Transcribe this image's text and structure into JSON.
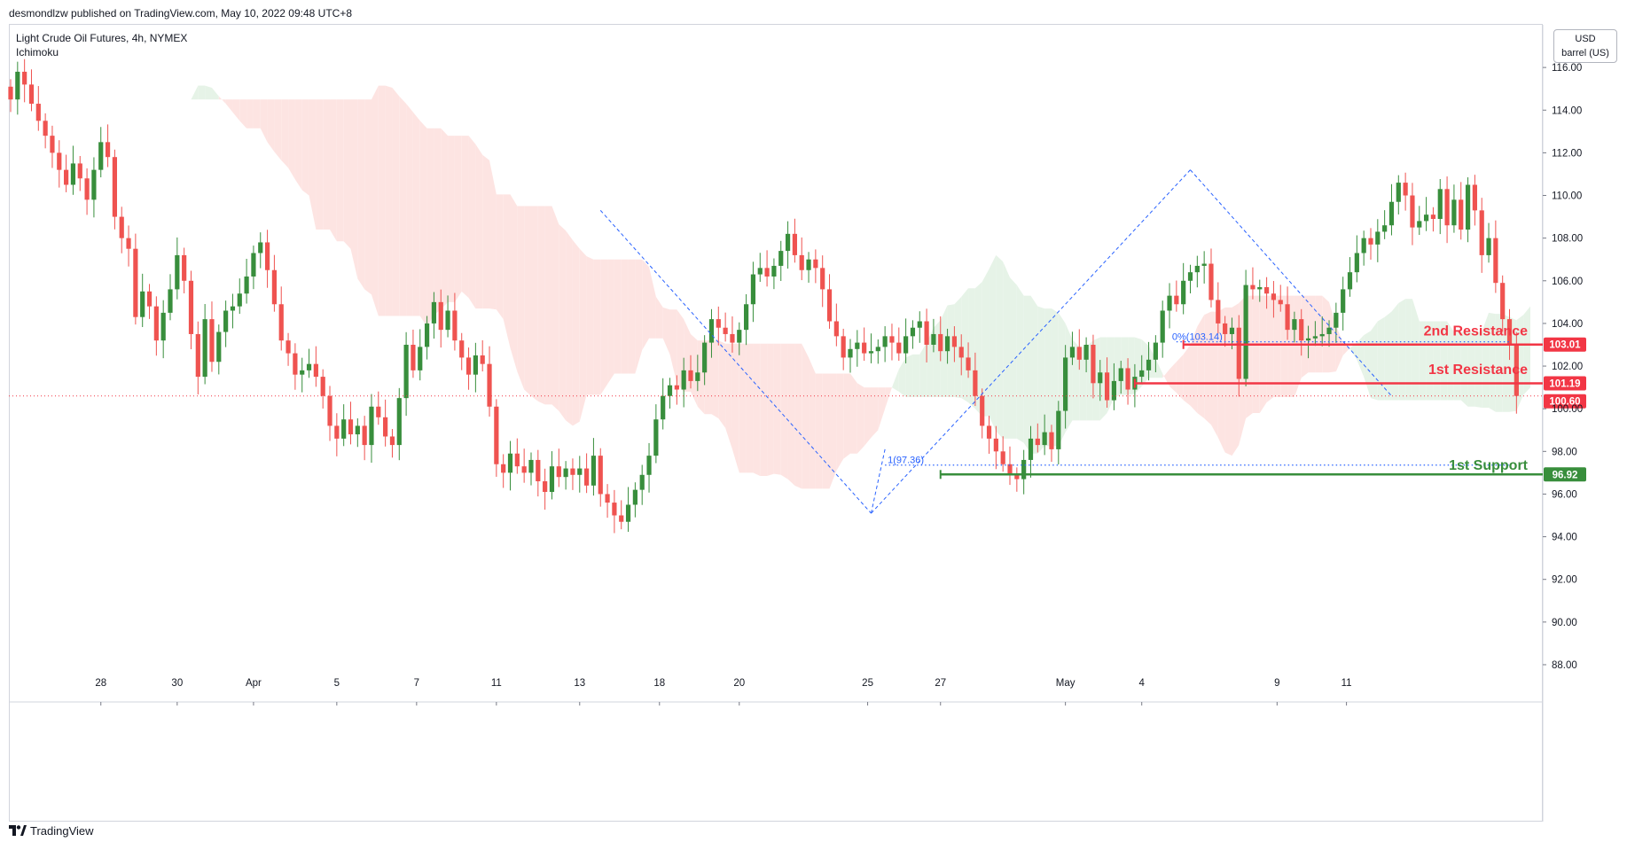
{
  "header": {
    "published": "desmondlzw published on TradingView.com, May 10, 2022 09:48 UTC+8"
  },
  "legend": {
    "symbol": "Light Crude Oil Futures, 4h, NYMEX",
    "indicator": "Ichimoku"
  },
  "unit_box": {
    "currency": "USD",
    "unit": "barrel (US)"
  },
  "footer": {
    "brand": "TradingView",
    "logo_icon": "tradingview-logo-icon"
  },
  "colors": {
    "up": "#388e3c",
    "down": "#ef5350",
    "cloud_bull": "#e6f3e7",
    "cloud_bear": "#fde4e2",
    "resistance": "#f23645",
    "support": "#388e3c",
    "fib": "#2962ff",
    "last_price": "#f23645"
  },
  "chart_data": {
    "type": "candlestick",
    "title": "Light Crude Oil Futures, 4h, NYMEX",
    "indicator": "Ichimoku",
    "ylim": [
      87.5,
      118
    ],
    "yticks": [
      "116.00",
      "114.00",
      "112.00",
      "110.00",
      "108.00",
      "106.00",
      "104.00",
      "102.00",
      "100.00",
      "98.00",
      "96.00",
      "94.00",
      "92.00",
      "90.00",
      "88.00"
    ],
    "xlim": [
      0,
      219
    ],
    "xticks": [
      {
        "label": "28",
        "x": 13
      },
      {
        "label": "30",
        "x": 24
      },
      {
        "label": "Apr",
        "x": 35
      },
      {
        "label": "5",
        "x": 47
      },
      {
        "label": "7",
        "x": 58.5
      },
      {
        "label": "11",
        "x": 70
      },
      {
        "label": "13",
        "x": 82
      },
      {
        "label": "18",
        "x": 93.5
      },
      {
        "label": "20",
        "x": 105
      },
      {
        "label": "25",
        "x": 123.5
      },
      {
        "label": "27",
        "x": 134
      },
      {
        "label": "May",
        "x": 152
      },
      {
        "label": "4",
        "x": 163
      },
      {
        "label": "9",
        "x": 182.5
      },
      {
        "label": "11",
        "x": 192.5
      }
    ],
    "closes": [
      114.5,
      115.8,
      115.2,
      114.3,
      113.5,
      112.8,
      112.0,
      111.2,
      110.5,
      111.5,
      110.8,
      109.8,
      111.2,
      112.5,
      111.8,
      109.0,
      108.0,
      107.5,
      104.3,
      105.5,
      104.8,
      103.2,
      104.5,
      105.6,
      107.2,
      106.0,
      103.5,
      101.5,
      104.2,
      102.2,
      103.6,
      104.6,
      104.8,
      105.4,
      106.2,
      107.3,
      107.8,
      106.5,
      104.9,
      103.2,
      102.6,
      101.6,
      101.8,
      102.1,
      101.5,
      100.6,
      99.2,
      98.6,
      99.5,
      98.8,
      99.2,
      98.3,
      100.1,
      99.6,
      98.7,
      98.3,
      100.5,
      103.0,
      101.8,
      102.9,
      104.0,
      105.0,
      103.7,
      104.6,
      103.2,
      102.4,
      101.6,
      102.5,
      102.1,
      100.1,
      97.4,
      97.0,
      97.9,
      97.3,
      97.0,
      97.6,
      96.6,
      96.1,
      97.3,
      96.8,
      97.2,
      96.9,
      97.2,
      96.4,
      97.8,
      96.0,
      95.6,
      95.0,
      94.7,
      95.5,
      96.2,
      96.9,
      97.8,
      99.5,
      100.6,
      101.1,
      100.9,
      101.8,
      101.3,
      101.7,
      103.1,
      104.2,
      103.8,
      103.5,
      103.1,
      103.7,
      104.9,
      106.3,
      106.6,
      106.2,
      106.7,
      107.4,
      108.2,
      107.2,
      106.5,
      107.0,
      106.6,
      105.6,
      104.1,
      103.4,
      102.4,
      102.8,
      103.1,
      102.6,
      102.7,
      102.9,
      103.4,
      103.1,
      102.6,
      103.4,
      103.8,
      104.1,
      103.0,
      103.5,
      102.7,
      103.4,
      102.9,
      102.4,
      101.8,
      100.6,
      99.2,
      98.6,
      98.0,
      97.4,
      96.9,
      96.7,
      97.6,
      98.6,
      98.3,
      98.9,
      98.1,
      99.9,
      102.4,
      102.9,
      102.3,
      103.0,
      101.2,
      101.7,
      100.4,
      101.3,
      101.9,
      100.9,
      101.5,
      101.8,
      102.3,
      103.1,
      104.6,
      105.3,
      104.9,
      106.0,
      106.4,
      106.7,
      106.8,
      105.1,
      104.0,
      103.5,
      103.8,
      101.4,
      105.8,
      105.6,
      105.7,
      105.4,
      105.1,
      104.9,
      103.7,
      104.2,
      103.2,
      103.3,
      103.4,
      103.5,
      103.8,
      104.5,
      105.6,
      106.4,
      107.3,
      108.0,
      107.7,
      108.3,
      108.6,
      109.7,
      110.6,
      110.0,
      108.5,
      108.8,
      109.1,
      108.9,
      110.3,
      108.6,
      109.8,
      108.4,
      110.5,
      109.3,
      107.2,
      108.0,
      105.9,
      104.2,
      103.0,
      100.6
    ],
    "cloud": {
      "bullish_spans": [
        [
          1,
          3
        ],
        [
          5,
          14
        ],
        [
          33,
          39
        ],
        [
          69,
          74
        ],
        [
          74,
          78
        ],
        [
          83,
          100
        ],
        [
          106,
          112
        ],
        [
          121,
          144
        ],
        [
          178,
          214
        ]
      ],
      "bearish_spans": [
        [
          0,
          12
        ],
        [
          14,
          33
        ],
        [
          39,
          69
        ],
        [
          78,
          83
        ],
        [
          100,
          106
        ],
        [
          112,
          121
        ],
        [
          144,
          178
        ]
      ]
    },
    "levels": [
      {
        "name": "2nd Resistance",
        "value": 103.01,
        "label": "103.01",
        "color": "resistance",
        "from_x": 169
      },
      {
        "name": "1st Resistance",
        "value": 101.19,
        "label": "101.19",
        "color": "resistance",
        "from_x": 162
      },
      {
        "name": "1st Support",
        "value": 96.92,
        "label": "96.92",
        "color": "support",
        "from_x": 134
      }
    ],
    "fib_labels": [
      {
        "text": "1(97.36)",
        "x": 129,
        "value": 97.36
      },
      {
        "text": "0%(103.14)",
        "x": 171,
        "value": 103.14
      }
    ],
    "last_price": {
      "value": 100.6,
      "label": "100.60"
    },
    "level_text": [
      {
        "text": "2nd Resistance",
        "value": 103.6,
        "color": "resistance"
      },
      {
        "text": "1st Resistance",
        "value": 101.8,
        "color": "resistance"
      },
      {
        "text": "1st Support",
        "value": 97.3,
        "color": "support"
      }
    ]
  }
}
